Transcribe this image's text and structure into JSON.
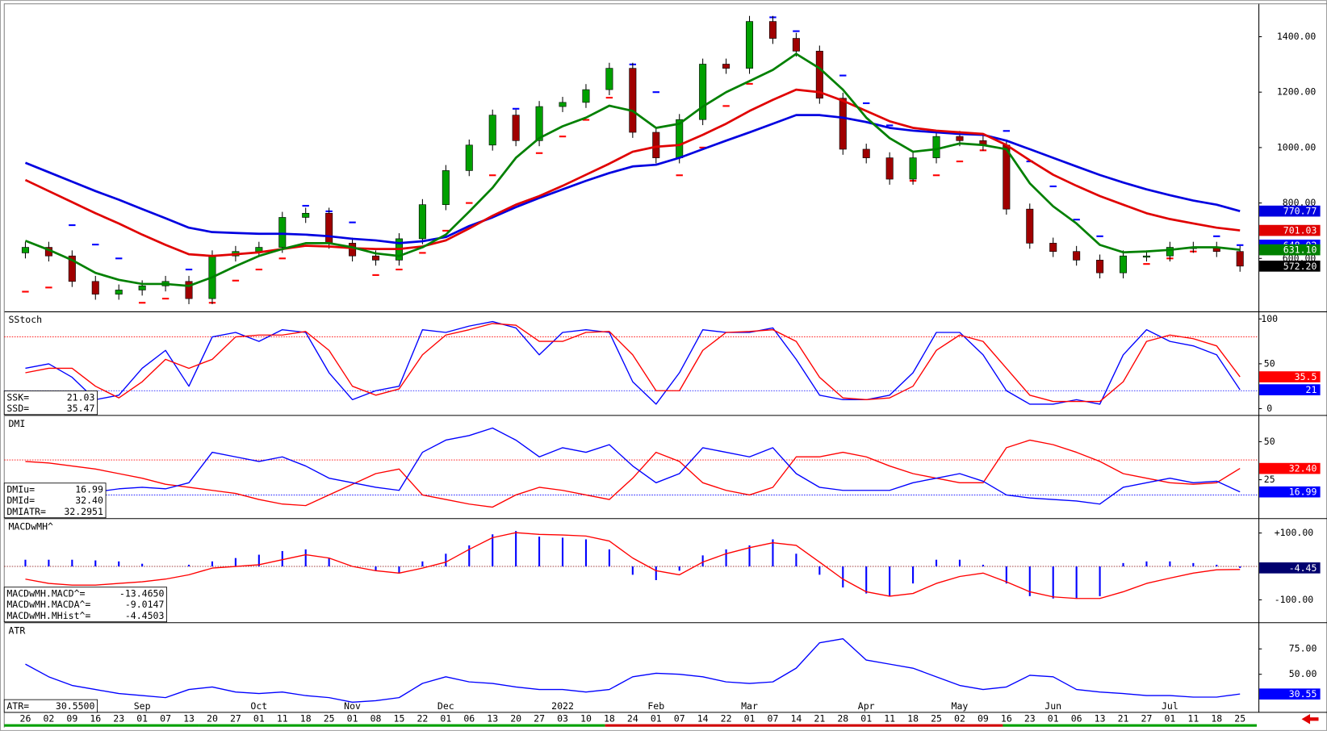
{
  "x_axis": {
    "categories": [
      "26",
      "02",
      "09",
      "16",
      "23",
      "01",
      "07",
      "13",
      "20",
      "27",
      "01",
      "11",
      "18",
      "25",
      "01",
      "08",
      "15",
      "22",
      "01",
      "06",
      "13",
      "20",
      "27",
      "03",
      "10",
      "18",
      "24",
      "01",
      "07",
      "14",
      "22",
      "01",
      "07",
      "14",
      "21",
      "28",
      "01",
      "11",
      "18",
      "25",
      "02",
      "09",
      "16",
      "23",
      "01",
      "06",
      "13",
      "21",
      "27",
      "01",
      "11",
      "18",
      "25"
    ],
    "months": [
      null,
      null,
      null,
      null,
      null,
      "Sep",
      null,
      null,
      null,
      null,
      "Oct",
      null,
      null,
      null,
      "Nov",
      null,
      null,
      null,
      "Dec",
      null,
      null,
      null,
      null,
      "2022",
      null,
      null,
      null,
      "Feb",
      null,
      null,
      null,
      "Mar",
      null,
      null,
      null,
      null,
      "Apr",
      null,
      null,
      null,
      "May",
      null,
      null,
      null,
      "Jun",
      null,
      null,
      null,
      null,
      "Jul",
      null,
      null,
      null
    ]
  },
  "chart_data": [
    {
      "type": "candlestick",
      "open": [
        620,
        640,
        609,
        517,
        471,
        486,
        501,
        517,
        455,
        609,
        625,
        640,
        748,
        763,
        655,
        609,
        594,
        671,
        794,
        917,
        1009,
        1117,
        1025,
        1148,
        1163,
        1209,
        1286,
        1055,
        963,
        1101,
        1301,
        1286,
        1455,
        1394,
        1348,
        1178,
        994,
        963,
        886,
        963,
        1040,
        1025,
        1009,
        778,
        655,
        625,
        594,
        548,
        609,
        609,
        640,
        640,
        625
      ],
      "high": [
        660,
        660,
        629,
        537,
        506,
        521,
        537,
        537,
        629,
        645,
        660,
        768,
        783,
        783,
        675,
        629,
        691,
        814,
        937,
        1029,
        1137,
        1137,
        1168,
        1183,
        1229,
        1306,
        1306,
        1075,
        1121,
        1321,
        1321,
        1475,
        1475,
        1414,
        1368,
        1198,
        1014,
        983,
        983,
        1060,
        1060,
        1045,
        1029,
        798,
        675,
        645,
        614,
        629,
        629,
        660,
        660,
        660,
        645
      ],
      "low": [
        600,
        589,
        497,
        451,
        451,
        466,
        481,
        435,
        435,
        589,
        605,
        620,
        728,
        635,
        589,
        574,
        574,
        651,
        774,
        897,
        989,
        1005,
        1005,
        1128,
        1143,
        1189,
        1035,
        943,
        943,
        1081,
        1266,
        1266,
        1374,
        1328,
        1158,
        974,
        943,
        866,
        866,
        943,
        1005,
        989,
        758,
        635,
        605,
        574,
        528,
        528,
        589,
        589,
        620,
        605,
        552
      ],
      "close": [
        640,
        609,
        517,
        471,
        486,
        501,
        517,
        455,
        609,
        625,
        640,
        748,
        763,
        655,
        609,
        594,
        671,
        794,
        917,
        1009,
        1117,
        1025,
        1148,
        1163,
        1209,
        1286,
        1055,
        963,
        1101,
        1301,
        1286,
        1455,
        1394,
        1348,
        1178,
        994,
        963,
        886,
        963,
        1040,
        1025,
        1009,
        778,
        655,
        625,
        594,
        548,
        609,
        609,
        640,
        640,
        625,
        572.2
      ],
      "close_label": "572.20",
      "close_badge_color": "#000000",
      "up_color": "#00a000",
      "down_color": "#a00000",
      "ylim": [
        409,
        1517
      ],
      "yticks": [
        {
          "value": 600,
          "label": "600.00"
        },
        {
          "value": 800,
          "label": "800.00"
        },
        {
          "value": 1000,
          "label": "1000.00"
        },
        {
          "value": 1200,
          "label": "1200.00"
        },
        {
          "value": 1400,
          "label": "1400.00"
        }
      ],
      "sar": {
        "values": [
          480,
          495,
          720,
          650,
          600,
          440,
          455,
          560,
          440,
          520,
          560,
          600,
          790,
          770,
          730,
          540,
          560,
          620,
          700,
          800,
          900,
          1140,
          980,
          1040,
          1100,
          1180,
          1300,
          1200,
          900,
          1000,
          1150,
          1230,
          1470,
          1420,
          1340,
          1260,
          1160,
          1080,
          880,
          900,
          950,
          990,
          1060,
          950,
          860,
          740,
          680,
          560,
          580,
          600,
          625,
          680,
          648.02
        ],
        "color_above": "#0000ff",
        "color_below": "#ff0000",
        "last_label": "648.02"
      },
      "lines": [
        {
          "color": "#0000e0",
          "last_label": "770.77",
          "values": [
            945,
            911,
            877,
            843,
            812,
            778,
            745,
            711,
            695,
            692,
            689,
            689,
            686,
            680,
            671,
            665,
            655,
            662,
            677,
            717,
            748,
            785,
            818,
            849,
            880,
            908,
            932,
            938,
            963,
            994,
            1025,
            1055,
            1086,
            1117,
            1117,
            1108,
            1092,
            1071,
            1061,
            1055,
            1049,
            1046,
            1025,
            994,
            963,
            932,
            901,
            874,
            849,
            828,
            809,
            794,
            770.77
          ]
        },
        {
          "color": "#e00000",
          "last_label": "701.03",
          "values": [
            883,
            843,
            803,
            763,
            726,
            686,
            649,
            615,
            609,
            615,
            622,
            634,
            646,
            643,
            637,
            634,
            634,
            643,
            665,
            708,
            754,
            794,
            825,
            862,
            902,
            942,
            985,
            1003,
            1009,
            1046,
            1086,
            1132,
            1172,
            1209,
            1200,
            1169,
            1132,
            1095,
            1071,
            1061,
            1055,
            1049,
            1009,
            954,
            902,
            862,
            825,
            794,
            763,
            742,
            726,
            711,
            701.03
          ]
        },
        {
          "color": "#008000",
          "last_label": "631.10",
          "values": [
            664,
            631,
            594,
            548,
            523,
            508,
            508,
            501,
            532,
            572,
            609,
            634,
            655,
            655,
            640,
            618,
            609,
            640,
            686,
            769,
            855,
            963,
            1034,
            1077,
            1108,
            1151,
            1132,
            1071,
            1086,
            1148,
            1200,
            1240,
            1280,
            1338,
            1286,
            1209,
            1108,
            1034,
            985,
            994,
            1015,
            1009,
            994,
            871,
            788,
            726,
            649,
            622,
            625,
            631,
            640,
            640,
            631.1
          ]
        }
      ]
    },
    {
      "type": "line",
      "title": "SStoch",
      "ylim": [
        -6.6,
        107.5
      ],
      "yticks": [
        0,
        50,
        100
      ],
      "ref_lines": [
        {
          "value": 80,
          "color": "#ff0000"
        },
        {
          "value": 20,
          "color": "#0000ff"
        }
      ],
      "legend": [
        {
          "name": "SSK=",
          "value_label": "21.03"
        },
        {
          "name": "SSD=",
          "value_label": "35.47"
        }
      ],
      "series": [
        {
          "kind": "line",
          "color": "#0000ff",
          "last_label": "21",
          "values": [
            45,
            50,
            35,
            10,
            15,
            45,
            65,
            25,
            80,
            85,
            75,
            88,
            85,
            40,
            10,
            20,
            25,
            88,
            85,
            92,
            97,
            90,
            60,
            85,
            88,
            85,
            30,
            5,
            40,
            88,
            85,
            85,
            90,
            55,
            15,
            10,
            10,
            15,
            40,
            85,
            85,
            60,
            20,
            5,
            5,
            10,
            5,
            60,
            88,
            75,
            70,
            60,
            21.03
          ]
        },
        {
          "kind": "line",
          "color": "#ff0000",
          "last_label": "35.5",
          "values": [
            40,
            45,
            45,
            25,
            12,
            30,
            55,
            45,
            55,
            80,
            82,
            82,
            86,
            65,
            25,
            15,
            22,
            60,
            82,
            88,
            95,
            93,
            75,
            75,
            85,
            86,
            60,
            20,
            20,
            65,
            85,
            86,
            88,
            75,
            35,
            12,
            10,
            12,
            25,
            65,
            82,
            75,
            45,
            15,
            8,
            8,
            8,
            30,
            75,
            82,
            78,
            70,
            35.47
          ]
        }
      ]
    },
    {
      "type": "line",
      "title": "DMI",
      "ylim": [
        0,
        66.7
      ],
      "yticks": [
        25,
        50
      ],
      "ref_lines": [
        {
          "value": 38,
          "color": "#ff0000"
        },
        {
          "value": 15,
          "color": "#0000ff"
        }
      ],
      "legend": [
        {
          "name": "DMIu=",
          "value_label": "16.99"
        },
        {
          "name": "DMId=",
          "value_label": "32.40"
        },
        {
          "name": "DMIATR=",
          "value_label": "32.2951"
        }
      ],
      "series": [
        {
          "kind": "line",
          "color": "#ff0000",
          "last_label": "32.40",
          "values": [
            37,
            36,
            34,
            32,
            29,
            26,
            22,
            20,
            18,
            16,
            12,
            9,
            8,
            15,
            22,
            29,
            32,
            15,
            12,
            9,
            7,
            15,
            20,
            18,
            15,
            12,
            26,
            43,
            37,
            23,
            18,
            15,
            20,
            40,
            40,
            43,
            40,
            34,
            29,
            26,
            23,
            23,
            46,
            51,
            48,
            43,
            37,
            29,
            26,
            23,
            22,
            23,
            32.4
          ]
        },
        {
          "kind": "line",
          "color": "#0000ff",
          "last_label": "16.99",
          "values": [
            20,
            18,
            15,
            17,
            19,
            20,
            19,
            23,
            43,
            40,
            37,
            40,
            34,
            26,
            23,
            20,
            18,
            43,
            51,
            54,
            59,
            51,
            40,
            46,
            43,
            48,
            34,
            23,
            29,
            46,
            43,
            40,
            46,
            29,
            20,
            18,
            18,
            18,
            23,
            26,
            29,
            24,
            15,
            13,
            12,
            11,
            9,
            20,
            23,
            26,
            23,
            24,
            16.99
          ]
        }
      ]
    },
    {
      "type": "line",
      "title": "MACDwMH^",
      "ylim": [
        -165.8,
        140.5
      ],
      "yticks": [
        {
          "value": -100,
          "label": "-100.00"
        },
        {
          "value": 100,
          "label": "+100.00"
        }
      ],
      "ref_lines": [
        {
          "value": 0,
          "color": "#800000"
        }
      ],
      "legend": [
        {
          "name": "MACDwMH.MACD^=",
          "value_label": "-13.4650"
        },
        {
          "name": "MACDwMH.MACDA^=",
          "value_label": "-9.0147"
        },
        {
          "name": "MACDwMH.MHist^=",
          "value_label": "-4.4503"
        }
      ],
      "series": [
        {
          "kind": "bar",
          "color": "#0000ff",
          "badge_color": "#00006e",
          "last_label": "-4.45",
          "values": [
            20,
            20,
            20,
            18,
            15,
            8,
            0,
            5,
            15,
            25,
            35,
            46,
            51,
            25,
            0,
            -13,
            -20,
            15,
            38,
            63,
            96,
            106,
            89,
            86,
            81,
            51,
            -25,
            -41,
            -13,
            33,
            51,
            63,
            81,
            38,
            -25,
            -63,
            -81,
            -89,
            -51,
            20,
            20,
            5,
            -51,
            -89,
            -96,
            -96,
            -89,
            10,
            15,
            15,
            10,
            5,
            -4.4503
          ]
        },
        {
          "kind": "line",
          "color": "#ff0000",
          "values": [
            -38,
            -51,
            -56,
            -56,
            -51,
            -46,
            -38,
            -25,
            -5,
            0,
            5,
            20,
            35,
            25,
            0,
            -13,
            -20,
            -5,
            13,
            51,
            86,
            101,
            96,
            94,
            91,
            76,
            25,
            -13,
            -25,
            13,
            38,
            56,
            71,
            63,
            13,
            -38,
            -76,
            -89,
            -81,
            -51,
            -30,
            -20,
            -46,
            -76,
            -91,
            -96,
            -96,
            -76,
            -51,
            -35,
            -20,
            -10,
            -9.0147
          ]
        }
      ]
    },
    {
      "type": "line",
      "title": "ATR",
      "ylim": [
        12.5,
        100
      ],
      "yticks": [
        {
          "value": 50,
          "label": "50.00"
        },
        {
          "value": 75,
          "label": "75.00"
        }
      ],
      "legend": [
        {
          "name": "ATR=",
          "value_label": "30.5500"
        }
      ],
      "series": [
        {
          "kind": "line",
          "color": "#0000ff",
          "last_label": "30.55",
          "values": [
            60,
            47.5,
            39,
            35,
            31,
            29,
            27,
            35,
            37.5,
            32.5,
            31,
            32.5,
            29,
            27,
            22.5,
            24,
            27,
            41,
            47.5,
            42.5,
            41,
            37.5,
            35,
            35,
            32.5,
            35,
            47.5,
            51,
            50,
            47.5,
            42.5,
            41,
            42.5,
            56,
            81,
            85,
            64,
            60,
            56,
            47.5,
            39,
            35,
            37.5,
            49,
            47.5,
            35,
            32.5,
            31,
            29,
            29,
            27.5,
            27.5,
            30.55
          ]
        }
      ]
    }
  ]
}
